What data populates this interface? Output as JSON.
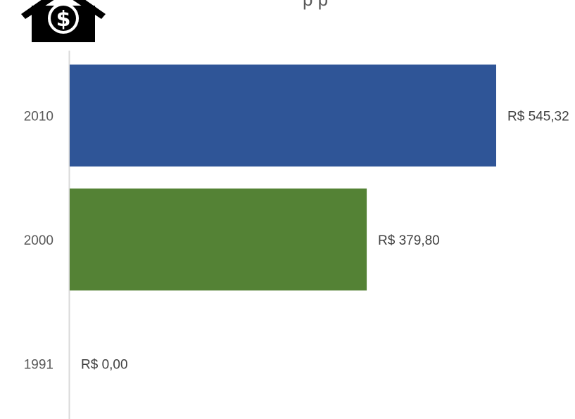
{
  "header": {
    "icon": "house-dollar-icon",
    "title_fragment": "p p"
  },
  "chart_data": {
    "type": "bar",
    "orientation": "horizontal",
    "categories": [
      "2010",
      "2000",
      "1991"
    ],
    "values": [
      545.32,
      379.8,
      0.0
    ],
    "data_labels": [
      "R$ 545,32",
      "R$ 379,80",
      "R$ 0,00"
    ],
    "colors": [
      "#2f5597",
      "#548235",
      "#a5a5a5"
    ],
    "xlim": [
      0,
      545.32
    ],
    "grid": false,
    "legend": "none"
  }
}
